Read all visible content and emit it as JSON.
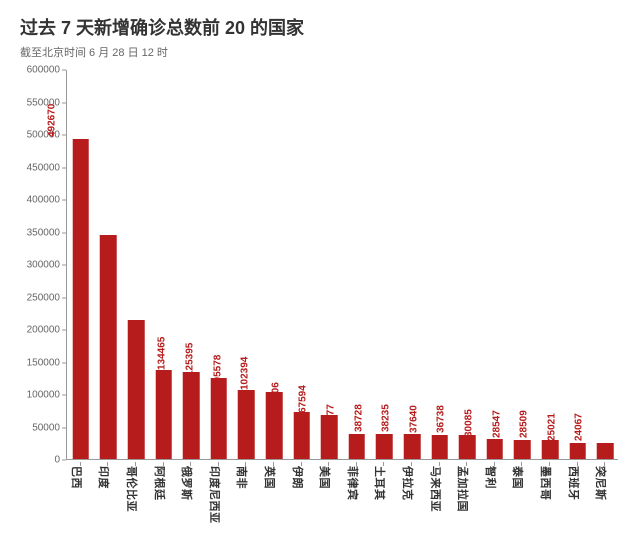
{
  "title": "过去 7 天新增确诊总数前 20 的国家",
  "subtitle": "截至北京时间 6 月 28 日 12 时",
  "chart": {
    "type": "bar",
    "y_axis": {
      "min": 0,
      "max": 600000,
      "tick_step": 50000,
      "label_fontsize": 10,
      "label_color": "#666666"
    },
    "categories": [
      "巴西",
      "印度",
      "哥伦比亚",
      "阿根廷",
      "俄罗斯",
      "印度尼西亚",
      "南非",
      "英国",
      "伊朗",
      "美国",
      "菲律宾",
      "土耳其",
      "伊拉克",
      "马来西亚",
      "孟加拉国",
      "智利",
      "泰国",
      "墨西哥",
      "西班牙",
      "突尼斯"
    ],
    "values": [
      492670,
      344602,
      213550,
      136458,
      134465,
      125395,
      105578,
      102394,
      72606,
      67594,
      38977,
      38728,
      38235,
      37640,
      36738,
      30085,
      28547,
      28509,
      25021,
      24067
    ],
    "bar_color": "#b71c1c",
    "value_label_color": "#b71c1c",
    "value_label_fontsize": 10,
    "value_label_fontweight": 700,
    "category_label_color": "#333333",
    "category_label_fontsize": 11,
    "category_label_fontweight": 700,
    "axis_color": "#999999",
    "background_color": "#ffffff",
    "bar_width_ratio": 0.6
  }
}
